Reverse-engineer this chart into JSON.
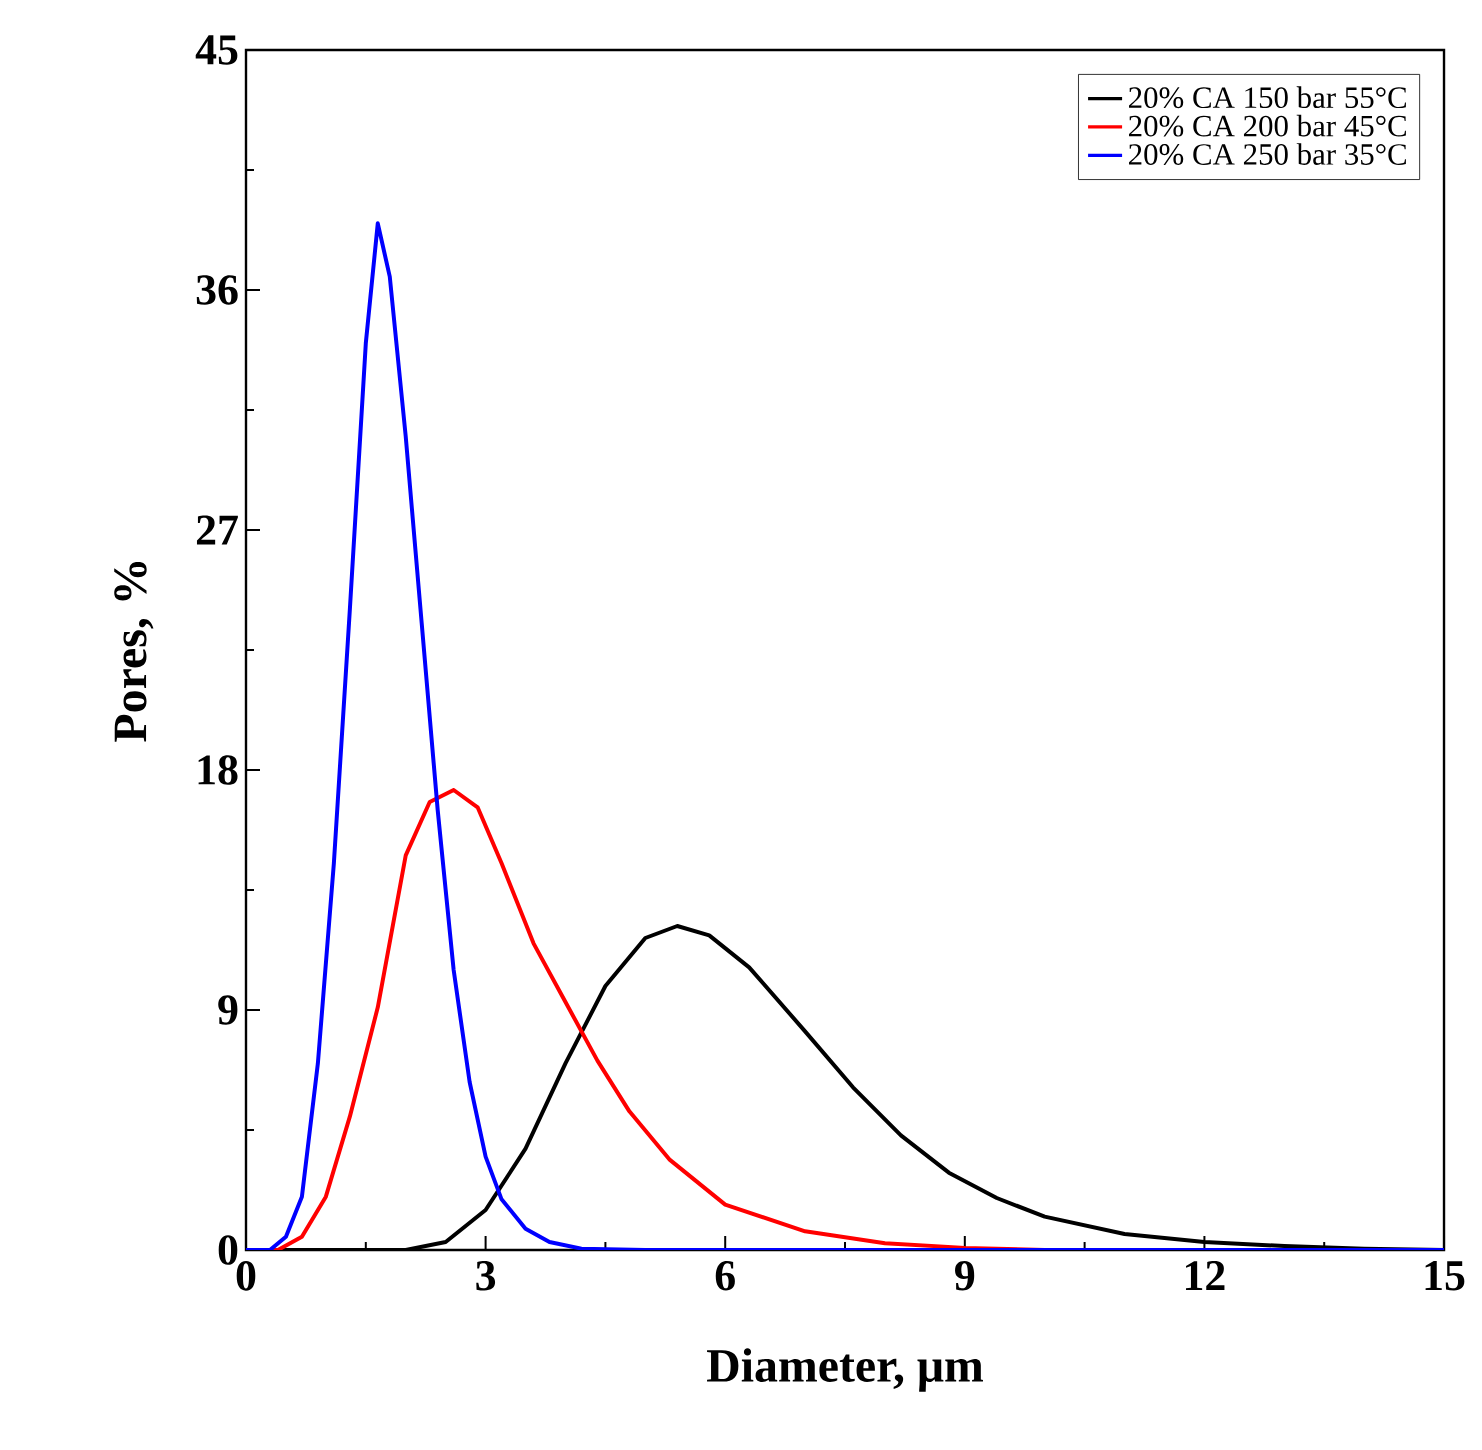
{
  "chart_data": {
    "type": "line",
    "xlabel": "Diameter, μm",
    "ylabel": "Pores, %",
    "xlim": [
      0,
      15
    ],
    "ylim": [
      0,
      45
    ],
    "xticks": [
      0,
      3,
      6,
      9,
      12,
      15
    ],
    "yticks": [
      0,
      9,
      18,
      27,
      36,
      45
    ],
    "legend": "top right",
    "grid": false,
    "marker": "none",
    "line_style": "solid",
    "series": [
      {
        "name": "20% CA 150 bar 55°C",
        "color": "#000000",
        "x": [
          0,
          2.0,
          2.5,
          3.0,
          3.5,
          4.0,
          4.5,
          5.0,
          5.4,
          5.8,
          6.3,
          7.0,
          7.6,
          8.2,
          8.8,
          9.4,
          10,
          11,
          12,
          13,
          14,
          15
        ],
        "values": [
          0,
          0,
          0.3,
          1.5,
          3.8,
          7.0,
          9.9,
          11.7,
          12.15,
          11.8,
          10.6,
          8.2,
          6.1,
          4.3,
          2.9,
          1.95,
          1.25,
          0.6,
          0.3,
          0.15,
          0.05,
          0
        ]
      },
      {
        "name": "20% CA 200 bar 45°C",
        "color": "#ff0000",
        "x": [
          0,
          0.4,
          0.7,
          1.0,
          1.3,
          1.65,
          2.0,
          2.3,
          2.6,
          2.9,
          3.2,
          3.6,
          4.0,
          4.4,
          4.8,
          5.3,
          6.0,
          7.0,
          8.0,
          9.0,
          10,
          15
        ],
        "values": [
          0,
          0,
          0.5,
          2.0,
          5.0,
          9.1,
          14.8,
          16.8,
          17.25,
          16.6,
          14.5,
          11.5,
          9.3,
          7.1,
          5.2,
          3.4,
          1.7,
          0.7,
          0.25,
          0.08,
          0,
          0
        ]
      },
      {
        "name": "20% CA 250 bar 35°C",
        "color": "#0000ff",
        "x": [
          0,
          0.3,
          0.5,
          0.7,
          0.9,
          1.1,
          1.3,
          1.5,
          1.65,
          1.8,
          2.0,
          2.2,
          2.4,
          2.6,
          2.8,
          3.0,
          3.2,
          3.5,
          3.8,
          4.2,
          5,
          15
        ],
        "values": [
          0,
          0,
          0.5,
          2.0,
          7.0,
          14.5,
          24,
          34,
          38.5,
          36.5,
          30.5,
          23.5,
          16.5,
          10.5,
          6.3,
          3.5,
          1.9,
          0.8,
          0.3,
          0.05,
          0,
          0
        ]
      }
    ]
  }
}
